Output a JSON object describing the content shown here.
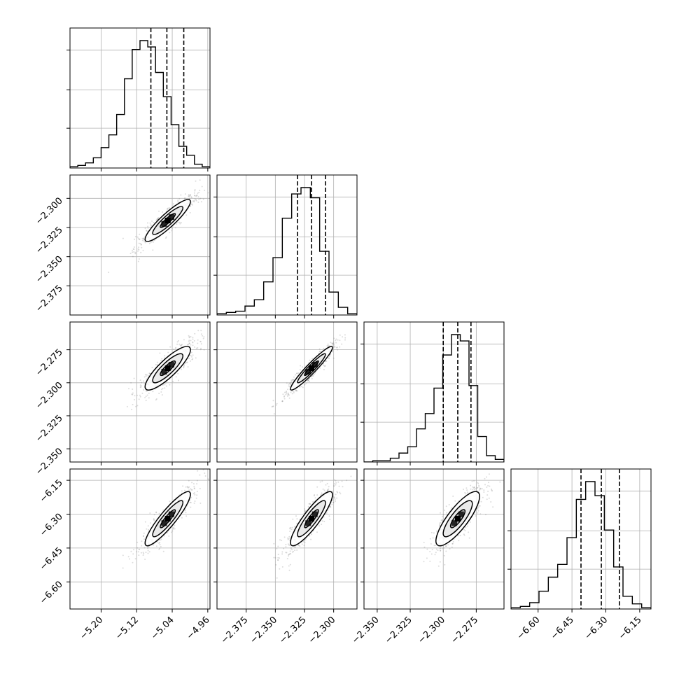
{
  "chart_data": {
    "type": "corner",
    "parameters": [
      {
        "range": [
          -5.27,
          -4.955
        ],
        "ticks": [
          -5.2,
          -5.12,
          -5.04,
          -4.96
        ],
        "tick_labels": [
          "−5.20",
          "−5.12",
          "−5.04",
          "−4.96"
        ],
        "quantiles": [
          -5.088,
          -5.052,
          -5.014
        ],
        "mean": -5.05,
        "sd": 0.034,
        "hist": [
          0.01,
          0.02,
          0.04,
          0.08,
          0.16,
          0.26,
          0.42,
          0.7,
          0.93,
          1.0,
          0.95,
          0.75,
          0.56,
          0.34,
          0.17,
          0.1,
          0.03,
          0.01
        ]
      },
      {
        "range": [
          -2.4,
          -2.28
        ],
        "ticks": [
          -2.375,
          -2.35,
          -2.325,
          -2.3
        ],
        "tick_labels": [
          "−2.375",
          "−2.350",
          "−2.325",
          "−2.300"
        ],
        "quantiles": [
          -2.331,
          -2.319,
          -2.307
        ],
        "mean": -2.319,
        "sd": 0.012,
        "hist": [
          0.01,
          0.02,
          0.03,
          0.07,
          0.12,
          0.26,
          0.45,
          0.76,
          0.95,
          1.0,
          0.92,
          0.5,
          0.18,
          0.06,
          0.01
        ]
      },
      {
        "range": [
          -2.36,
          -2.254
        ],
        "ticks": [
          -2.35,
          -2.325,
          -2.3,
          -2.275
        ],
        "tick_labels": [
          "−2.350",
          "−2.325",
          "−2.300",
          "−2.275"
        ],
        "quantiles": [
          -2.3,
          -2.289,
          -2.279
        ],
        "mean": -2.289,
        "sd": 0.011,
        "hist": [
          0.0,
          0.01,
          0.01,
          0.03,
          0.07,
          0.12,
          0.26,
          0.38,
          0.58,
          0.84,
          1.0,
          0.95,
          0.6,
          0.2,
          0.05,
          0.02
        ]
      },
      {
        "range": [
          -6.72,
          -6.1
        ],
        "ticks": [
          -6.6,
          -6.45,
          -6.3,
          -6.15
        ],
        "tick_labels": [
          "−6.60",
          "−6.45",
          "−6.30",
          "−6.15"
        ],
        "quantiles": [
          -6.41,
          -6.32,
          -6.24
        ],
        "mean": -6.32,
        "sd": 0.08,
        "hist": [
          0.01,
          0.02,
          0.05,
          0.14,
          0.25,
          0.35,
          0.56,
          0.86,
          1.0,
          0.89,
          0.62,
          0.33,
          0.1,
          0.04,
          0.01
        ]
      }
    ],
    "correlations": [
      [
        1,
        0.9,
        0.85,
        0.9
      ],
      [
        0.9,
        1,
        0.95,
        0.88
      ],
      [
        0.85,
        0.95,
        1,
        0.82
      ],
      [
        0.9,
        0.88,
        0.82,
        1
      ]
    ],
    "contour_levels": [
      0.5,
      1.0,
      1.5
    ],
    "grid": true,
    "line_color": "#000000",
    "grid_color": "#b0b0b0",
    "point_color": "#808080"
  }
}
